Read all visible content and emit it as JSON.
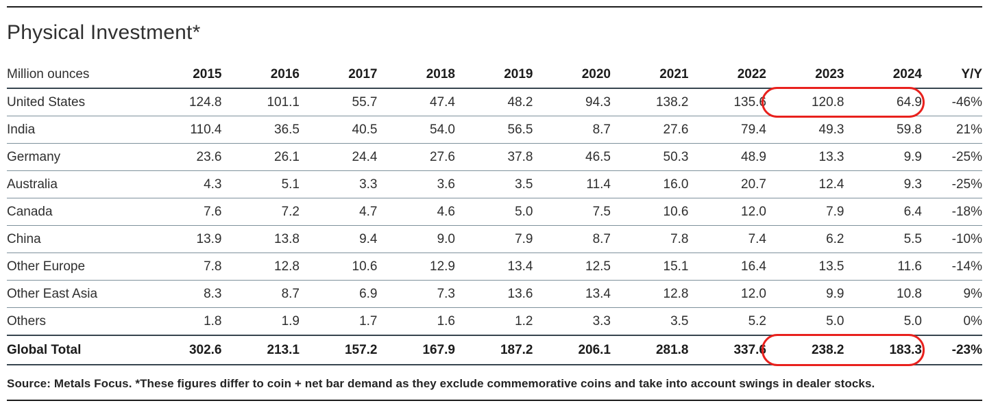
{
  "page": {
    "title": "Physical Investment*",
    "source_note": "Source: Metals Focus. *These figures differ to coin + net bar demand as they exclude commemorative coins and take into account swings in dealer stocks."
  },
  "colors": {
    "highlight_red": "#e8211d",
    "row_divider": "#7d909b",
    "strong_divider": "#36444e",
    "page_rule": "#1c1c1c"
  },
  "chart_data": {
    "type": "table",
    "title": "Physical Investment*",
    "unit": "Million ounces",
    "columns": [
      "Million ounces",
      "2015",
      "2016",
      "2017",
      "2018",
      "2019",
      "2020",
      "2021",
      "2022",
      "2023",
      "2024",
      "Y/Y"
    ],
    "rows": [
      {
        "label": "United States",
        "values": [
          "124.8",
          "101.1",
          "55.7",
          "47.4",
          "48.2",
          "94.3",
          "138.2",
          "135.6",
          "120.8",
          "64.9"
        ],
        "yoy": "-46%",
        "highlighted": true
      },
      {
        "label": "India",
        "values": [
          "110.4",
          "36.5",
          "40.5",
          "54.0",
          "56.5",
          "8.7",
          "27.6",
          "79.4",
          "49.3",
          "59.8"
        ],
        "yoy": "21%",
        "highlighted": false
      },
      {
        "label": "Germany",
        "values": [
          "23.6",
          "26.1",
          "24.4",
          "27.6",
          "37.8",
          "46.5",
          "50.3",
          "48.9",
          "13.3",
          "9.9"
        ],
        "yoy": "-25%",
        "highlighted": false
      },
      {
        "label": "Australia",
        "values": [
          "4.3",
          "5.1",
          "3.3",
          "3.6",
          "3.5",
          "11.4",
          "16.0",
          "20.7",
          "12.4",
          "9.3"
        ],
        "yoy": "-25%",
        "highlighted": false
      },
      {
        "label": "Canada",
        "values": [
          "7.6",
          "7.2",
          "4.7",
          "4.6",
          "5.0",
          "7.5",
          "10.6",
          "12.0",
          "7.9",
          "6.4"
        ],
        "yoy": "-18%",
        "highlighted": false
      },
      {
        "label": "China",
        "values": [
          "13.9",
          "13.8",
          "9.4",
          "9.0",
          "7.9",
          "8.7",
          "7.8",
          "7.4",
          "6.2",
          "5.5"
        ],
        "yoy": "-10%",
        "highlighted": false
      },
      {
        "label": "Other Europe",
        "values": [
          "7.8",
          "12.8",
          "10.6",
          "12.9",
          "13.4",
          "12.5",
          "15.1",
          "16.4",
          "13.5",
          "11.6"
        ],
        "yoy": "-14%",
        "highlighted": false
      },
      {
        "label": "Other East Asia",
        "values": [
          "8.3",
          "8.7",
          "6.9",
          "7.3",
          "13.6",
          "13.4",
          "12.8",
          "12.0",
          "9.9",
          "10.8"
        ],
        "yoy": "9%",
        "highlighted": false
      },
      {
        "label": "Others",
        "values": [
          "1.8",
          "1.9",
          "1.7",
          "1.6",
          "1.2",
          "3.3",
          "3.5",
          "5.2",
          "5.0",
          "5.0"
        ],
        "yoy": "0%",
        "highlighted": false
      }
    ],
    "total": {
      "label": "Global Total",
      "values": [
        "302.6",
        "213.1",
        "157.2",
        "167.9",
        "187.2",
        "206.1",
        "281.8",
        "337.6",
        "238.2",
        "183.3"
      ],
      "yoy": "-23%",
      "highlighted": true
    },
    "annotations": [
      "Red rounded outline highlighting the 2023 and 2024 values of the United States row and the Global Total row"
    ]
  }
}
